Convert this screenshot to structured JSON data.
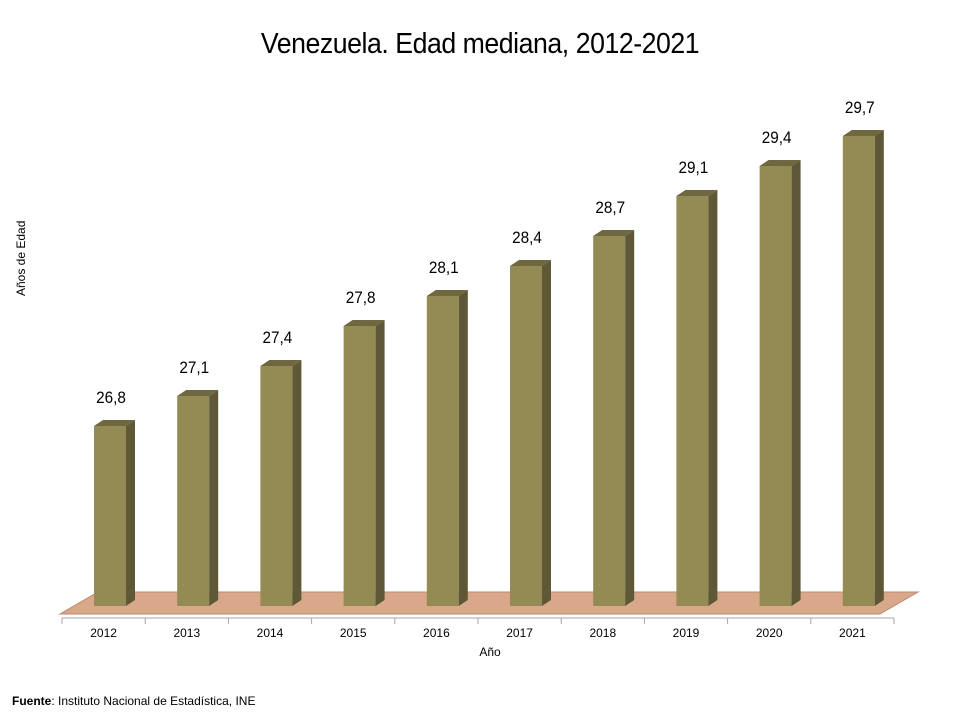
{
  "chart_data": {
    "type": "bar",
    "title": "Venezuela. Edad mediana, 2012-2021",
    "xlabel": "Año",
    "ylabel": "Años de Edad",
    "categories": [
      "2012",
      "2013",
      "2014",
      "2015",
      "2016",
      "2017",
      "2018",
      "2019",
      "2020",
      "2021"
    ],
    "values": [
      26.8,
      27.1,
      27.4,
      27.8,
      28.1,
      28.4,
      28.7,
      29.1,
      29.4,
      29.7
    ],
    "value_labels": [
      "26,8",
      "27,1",
      "27,4",
      "27,8",
      "28,1",
      "28,4",
      "28,7",
      "29,1",
      "29,4",
      "29,7"
    ],
    "grid": false,
    "legend": "none",
    "colors": {
      "bar_front": "#948a54",
      "bar_side": "#5f5836",
      "bar_top": "#6f6740",
      "floor": "#d9a88a"
    }
  },
  "footer": {
    "source_label": "Fuente",
    "source_text": ": Instituto Nacional de Estadística, INE"
  }
}
